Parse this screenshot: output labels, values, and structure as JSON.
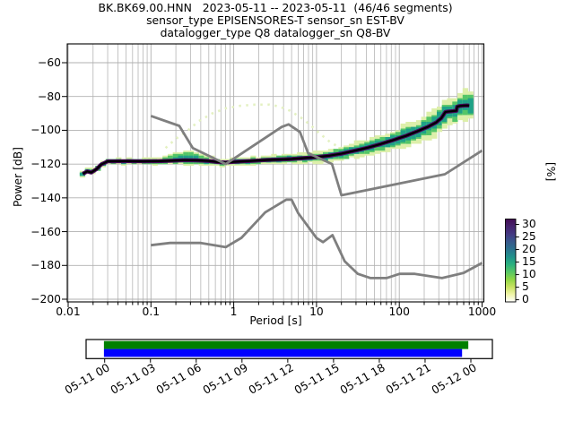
{
  "header": {
    "line1": "BK.BK69.00.HNN   2023-05-11 -- 2023-05-11  (46/46 segments)",
    "line2": "sensor_type EPISENSORES-T sensor_sn EST-BV",
    "line3": "datalogger_type Q8 datalogger_sn Q8-BV"
  },
  "chart_data": {
    "type": "heatmap",
    "title": "BK.BK69.00.HNN 2023-05-11 -- 2023-05-11 (46/46 segments)",
    "subtitle1": "sensor_type EPISENSORES-T sensor_sn EST-BV",
    "subtitle2": "datalogger_type Q8 datalogger_sn Q8-BV",
    "xlabel": "Period [s]",
    "ylabel": "Power [dB]",
    "xscale": "log",
    "xlim": [
      0.01,
      1000
    ],
    "ylim": [
      -200,
      -60
    ],
    "grid": true,
    "xtick_labels": [
      "0.01",
      "0.1",
      "1",
      "10",
      "100",
      "1000"
    ],
    "xtick_values": [
      0.01,
      0.1,
      1,
      10,
      100,
      1000
    ],
    "ytick_values": [
      -60,
      -80,
      -100,
      -120,
      -140,
      -160,
      -180,
      -200
    ],
    "ytick_labels": [
      "−60",
      "−80",
      "−100",
      "−120",
      "−140",
      "−160",
      "−180",
      "−200"
    ],
    "colorbar": {
      "label": "[%]",
      "tick_values": [
        30,
        25,
        20,
        15,
        10,
        5,
        0
      ],
      "tick_labels": [
        "30",
        "25",
        "20",
        "15",
        "10",
        "5",
        "0"
      ],
      "gradient_bottom_to_top": [
        "#ffffff",
        "#f0f6a8",
        "#c8e261",
        "#8ed645",
        "#56c667",
        "#2ab07f",
        "#21918c",
        "#2c728e",
        "#38598c",
        "#443983",
        "#46246e",
        "#440d54"
      ]
    },
    "noise_models": {
      "color": "#7f7f7f",
      "nhnm": [
        [
          0.1,
          -91.5
        ],
        [
          0.22,
          -97.4
        ],
        [
          0.32,
          -110.5
        ],
        [
          0.8,
          -120.0
        ],
        [
          3.8,
          -98.0
        ],
        [
          4.6,
          -96.5
        ],
        [
          6.3,
          -101.0
        ],
        [
          7.9,
          -113.5
        ],
        [
          15.4,
          -120.0
        ],
        [
          20.0,
          -138.5
        ],
        [
          354.8,
          -126.0
        ],
        [
          1000,
          -112.0
        ]
      ],
      "nlnm": [
        [
          0.1,
          -168.0
        ],
        [
          0.17,
          -166.7
        ],
        [
          0.4,
          -166.7
        ],
        [
          0.8,
          -169.2
        ],
        [
          1.24,
          -163.7
        ],
        [
          2.4,
          -148.6
        ],
        [
          4.3,
          -141.1
        ],
        [
          5.0,
          -141.1
        ],
        [
          6.0,
          -149.0
        ],
        [
          10.0,
          -163.8
        ],
        [
          12.0,
          -166.2
        ],
        [
          15.6,
          -162.1
        ],
        [
          21.9,
          -177.5
        ],
        [
          31.6,
          -185.0
        ],
        [
          45.0,
          -187.5
        ],
        [
          70.0,
          -187.5
        ],
        [
          101.0,
          -185.0
        ],
        [
          154.0,
          -185.0
        ],
        [
          328.0,
          -187.5
        ],
        [
          600.0,
          -184.4
        ],
        [
          1000,
          -178.5
        ]
      ]
    },
    "psd_mode_line": {
      "color": "#000000",
      "points": [
        [
          0.015,
          -125.8
        ],
        [
          0.017,
          -124.3
        ],
        [
          0.019,
          -125.0
        ],
        [
          0.022,
          -123.0
        ],
        [
          0.025,
          -120.3
        ],
        [
          0.03,
          -118.4
        ],
        [
          0.05,
          -118.3
        ],
        [
          0.08,
          -118.4
        ],
        [
          0.12,
          -118.3
        ],
        [
          0.18,
          -118.0
        ],
        [
          0.25,
          -117.7
        ],
        [
          0.35,
          -117.8
        ],
        [
          0.5,
          -118.2
        ],
        [
          0.65,
          -118.8
        ],
        [
          0.8,
          -119.1
        ],
        [
          1.0,
          -118.7
        ],
        [
          1.3,
          -118.4
        ],
        [
          1.8,
          -118.0
        ],
        [
          2.5,
          -117.6
        ],
        [
          3.5,
          -117.3
        ],
        [
          5,
          -117.0
        ],
        [
          7,
          -116.5
        ],
        [
          9,
          -116.1
        ],
        [
          11,
          -115.7
        ],
        [
          14,
          -115.1
        ],
        [
          17,
          -114.4
        ],
        [
          20,
          -113.9
        ],
        [
          24,
          -113.0
        ],
        [
          29,
          -112.1
        ],
        [
          35,
          -111.2
        ],
        [
          42,
          -110.2
        ],
        [
          50,
          -109.2
        ],
        [
          60,
          -108.1
        ],
        [
          72,
          -106.9
        ],
        [
          86,
          -105.7
        ],
        [
          100,
          -104.6
        ],
        [
          120,
          -103.3
        ],
        [
          140,
          -102.0
        ],
        [
          165,
          -100.6
        ],
        [
          190,
          -99.3
        ],
        [
          220,
          -98.0
        ],
        [
          250,
          -96.6
        ],
        [
          280,
          -95.3
        ],
        [
          300,
          -94.0
        ],
        [
          320,
          -93.0
        ],
        [
          340,
          -91.0
        ],
        [
          360,
          -89.2
        ],
        [
          380,
          -89.0
        ],
        [
          420,
          -88.8
        ],
        [
          460,
          -88.6
        ],
        [
          490,
          -88.5
        ],
        [
          500,
          -86.0
        ],
        [
          540,
          -85.6
        ],
        [
          600,
          -85.4
        ],
        [
          660,
          -85.3
        ],
        [
          700,
          -85.4
        ]
      ]
    },
    "event_arc": {
      "color": "#e4f1c2",
      "points": [
        [
          0.15,
          -110.5
        ],
        [
          0.2,
          -105
        ],
        [
          0.28,
          -100
        ],
        [
          0.38,
          -94.5
        ],
        [
          0.55,
          -90
        ],
        [
          0.8,
          -87
        ],
        [
          1.2,
          -85.5
        ],
        [
          1.8,
          -84.8
        ],
        [
          2.7,
          -84.8
        ],
        [
          3.5,
          -85.8
        ],
        [
          4.8,
          -88.5
        ],
        [
          6.5,
          -92.5
        ],
        [
          8.5,
          -97
        ],
        [
          11,
          -102
        ],
        [
          15,
          -107.5
        ],
        [
          20,
          -110.5
        ],
        [
          28,
          -112
        ],
        [
          38,
          -113
        ]
      ]
    },
    "histogram": {
      "band_halfwidth_db": [
        [
          0.015,
          1.2
        ],
        [
          0.1,
          1.2
        ],
        [
          0.3,
          1.8
        ],
        [
          0.8,
          1.5
        ],
        [
          3,
          1.6
        ],
        [
          8,
          2.0
        ],
        [
          15,
          2.4
        ],
        [
          30,
          3.0
        ],
        [
          60,
          3.6
        ],
        [
          120,
          4.2
        ],
        [
          250,
          4.8
        ],
        [
          450,
          5.2
        ],
        [
          700,
          5.5
        ],
        [
          820,
          5.0
        ]
      ],
      "blob_top_db": [
        [
          0.125,
          -116.8
        ],
        [
          0.16,
          -114.6
        ],
        [
          0.2,
          -113.2
        ],
        [
          0.26,
          -112.2
        ],
        [
          0.31,
          -112.0
        ],
        [
          0.37,
          -112.8
        ],
        [
          0.45,
          -114.8
        ],
        [
          0.55,
          -117.2
        ]
      ],
      "layer_colors": {
        "light": "#ddefaa",
        "green": "#54c568",
        "teal": "#1fa187",
        "purple": "#46085c"
      }
    }
  },
  "timeline": {
    "labels": [
      "05-11 00",
      "05-11 03",
      "05-11 06",
      "05-11 09",
      "05-11 12",
      "05-11 15",
      "05-11 18",
      "05-11 21",
      "05-12 00"
    ],
    "bars": [
      {
        "name": "coverage-green",
        "color": "#008000",
        "start_frac": -0.002,
        "end_frac": 0.993
      },
      {
        "name": "data-blue",
        "color": "#0000ff",
        "start_frac": -0.002,
        "end_frac": 0.976
      }
    ]
  }
}
